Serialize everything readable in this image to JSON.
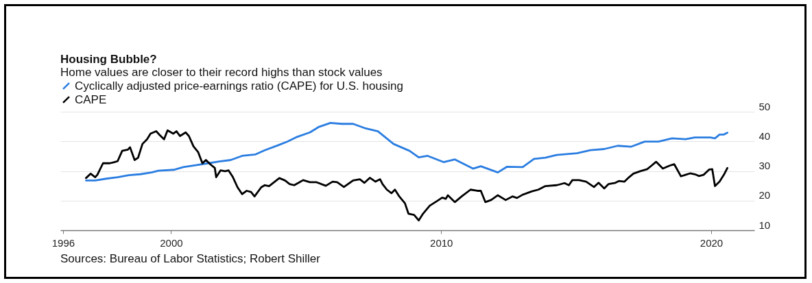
{
  "chart_data": {
    "type": "line",
    "title": "Housing Bubble?",
    "subtitle": "Home values are closer to their record highs than stock values",
    "annotations": [
      "Sources: Bureau of Labor Statistics; Robert Shiller"
    ],
    "xlim": [
      1995.9,
      2021.6
    ],
    "xticks": [
      1996,
      2000,
      2010,
      2020
    ],
    "ylim": [
      10,
      50
    ],
    "yticks": [
      10,
      20,
      30,
      40,
      50
    ],
    "grid": "y",
    "legend": "top left",
    "series": [
      {
        "name": "Cyclically adjusted price-earnings ratio (CAPE) for U.S. housing",
        "color": "#2a7de1",
        "x": [
          1996.85,
          1997.19,
          1997.6,
          1998.02,
          1998.44,
          1998.86,
          1999.28,
          1999.53,
          2000.12,
          2000.45,
          2000.95,
          2001.37,
          2001.79,
          2002.21,
          2002.63,
          2003.13,
          2003.47,
          2003.97,
          2004.3,
          2004.64,
          2005.14,
          2005.48,
          2005.9,
          2006.32,
          2006.74,
          2007.16,
          2007.66,
          2008.24,
          2008.83,
          2009.17,
          2009.5,
          2010.09,
          2010.51,
          2011.18,
          2011.47,
          2012.1,
          2012.43,
          2013.02,
          2013.44,
          2013.86,
          2014.28,
          2015.03,
          2015.53,
          2016.04,
          2016.54,
          2017.04,
          2017.54,
          2018.05,
          2018.55,
          2019.05,
          2019.39,
          2019.97,
          2020.14,
          2020.31,
          2020.47,
          2020.6
        ],
        "values": [
          26.8,
          26.8,
          27.4,
          27.9,
          28.6,
          28.9,
          29.5,
          30.1,
          30.4,
          31.3,
          32.0,
          32.6,
          33.2,
          33.7,
          35.1,
          35.6,
          37.0,
          38.7,
          39.9,
          41.4,
          43.0,
          44.9,
          46.2,
          45.9,
          45.9,
          44.5,
          43.4,
          39.1,
          36.8,
          34.6,
          35.1,
          33.0,
          33.9,
          30.8,
          31.6,
          29.5,
          31.4,
          31.3,
          34.1,
          34.5,
          35.4,
          36.0,
          37.0,
          37.4,
          38.5,
          38.2,
          39.9,
          39.9,
          41.0,
          40.7,
          41.3,
          41.3,
          41.0,
          42.3,
          42.3,
          42.9
        ]
      },
      {
        "name": "CAPE",
        "color": "#000000",
        "x": [
          1996.85,
          1997.02,
          1997.19,
          1997.27,
          1997.48,
          1997.73,
          1997.9,
          1998.02,
          1998.19,
          1998.4,
          1998.48,
          1998.65,
          1998.78,
          1998.94,
          1999.11,
          1999.24,
          1999.45,
          1999.57,
          1999.74,
          1999.87,
          2000.08,
          2000.2,
          2000.33,
          2000.54,
          2000.66,
          2000.83,
          2001.0,
          2001.16,
          2001.29,
          2001.46,
          2001.62,
          2001.67,
          2001.83,
          2002.0,
          2002.13,
          2002.29,
          2002.46,
          2002.63,
          2002.8,
          2002.96,
          2003.09,
          2003.34,
          2003.47,
          2003.63,
          2003.84,
          2004.01,
          2004.22,
          2004.39,
          2004.56,
          2004.72,
          2004.89,
          2005.14,
          2005.39,
          2005.73,
          2005.98,
          2006.15,
          2006.4,
          2006.74,
          2006.99,
          2007.16,
          2007.36,
          2007.57,
          2007.74,
          2007.83,
          2007.99,
          2008.16,
          2008.29,
          2008.45,
          2008.66,
          2008.79,
          2009.0,
          2009.17,
          2009.33,
          2009.58,
          2009.84,
          2010.04,
          2010.17,
          2010.25,
          2010.51,
          2010.76,
          2011.09,
          2011.34,
          2011.47,
          2011.64,
          2011.85,
          2012.1,
          2012.39,
          2012.64,
          2012.81,
          2013.02,
          2013.35,
          2013.6,
          2013.86,
          2014.28,
          2014.57,
          2014.73,
          2014.86,
          2015.11,
          2015.37,
          2015.66,
          2015.83,
          2016.04,
          2016.2,
          2016.45,
          2016.58,
          2016.79,
          2016.96,
          2017.12,
          2017.37,
          2017.63,
          2017.79,
          2017.96,
          2018.21,
          2018.46,
          2018.63,
          2018.88,
          2019.05,
          2019.22,
          2019.39,
          2019.55,
          2019.72,
          2019.93,
          2020.04,
          2020.14,
          2020.31,
          2020.47,
          2020.6
        ],
        "values": [
          27.6,
          29.1,
          27.9,
          28.7,
          32.6,
          32.6,
          33.0,
          33.3,
          36.8,
          37.2,
          38.0,
          33.7,
          34.5,
          39.1,
          40.7,
          42.6,
          43.4,
          42.2,
          40.7,
          43.7,
          42.6,
          43.4,
          41.8,
          43.0,
          41.8,
          38.3,
          36.4,
          32.6,
          33.7,
          32.2,
          31.0,
          27.9,
          30.2,
          29.9,
          30.2,
          27.9,
          24.5,
          22.2,
          23.3,
          22.9,
          21.4,
          24.5,
          25.2,
          24.9,
          26.4,
          27.6,
          26.8,
          25.6,
          25.2,
          26.0,
          26.9,
          26.2,
          26.2,
          25.0,
          26.4,
          26.2,
          24.6,
          26.8,
          27.2,
          26.0,
          27.7,
          26.4,
          27.2,
          25.6,
          23.7,
          22.5,
          23.7,
          21.4,
          19.1,
          15.6,
          15.2,
          13.3,
          15.6,
          18.3,
          19.8,
          21.0,
          20.6,
          21.8,
          19.5,
          21.4,
          23.7,
          23.3,
          23.3,
          19.5,
          20.2,
          21.8,
          20.2,
          21.4,
          20.9,
          22.0,
          23.1,
          23.7,
          24.9,
          25.2,
          25.9,
          25.2,
          26.9,
          26.9,
          26.4,
          24.6,
          26.0,
          24.1,
          25.6,
          26.0,
          26.6,
          26.4,
          27.9,
          29.1,
          29.9,
          30.6,
          31.8,
          33.1,
          30.8,
          31.8,
          32.3,
          28.2,
          28.7,
          29.2,
          28.9,
          28.3,
          28.7,
          30.5,
          30.6,
          24.9,
          26.4,
          28.7,
          31.0
        ]
      }
    ]
  }
}
